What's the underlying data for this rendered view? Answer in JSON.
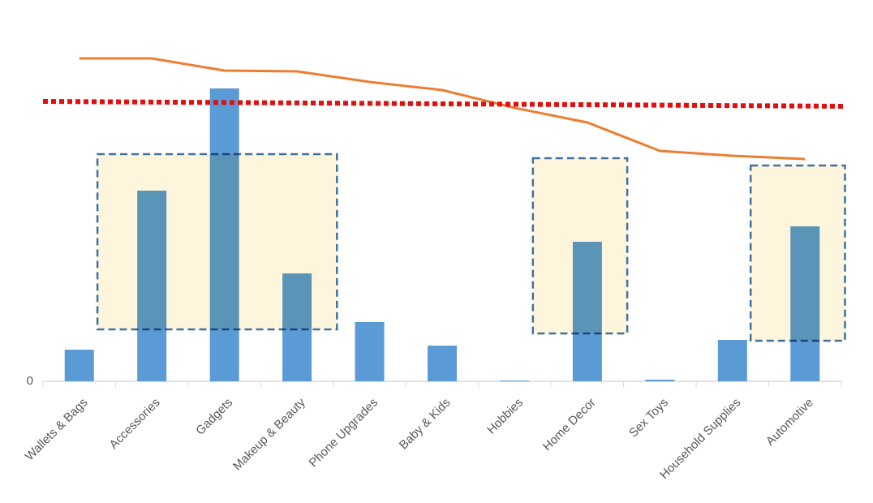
{
  "chart_data": {
    "type": "bar_line",
    "categories": [
      "Wallets & Bags",
      "Accessories",
      "Gadgets",
      "Makeup & Beauty",
      "Phone Upgrades",
      "Baby & Kids",
      "Hobbies",
      "Home Decor",
      "Sex Toys",
      "Household Supplies",
      "Automotive"
    ],
    "series": [
      {
        "type": "bar",
        "color": "#5b9bd5",
        "values": [
          39,
          235,
          361,
          133,
          73,
          44,
          1,
          172,
          2,
          51,
          191
        ]
      },
      {
        "type": "line",
        "color": "#ed7d31",
        "values": [
          398,
          398,
          383,
          382,
          369,
          359,
          337,
          319,
          284,
          278,
          274
        ]
      }
    ],
    "reference_line": {
      "color": "#e01010",
      "start": 345,
      "end": 339
    },
    "highlights": [
      {
        "from": 1,
        "to": 3,
        "top": 280,
        "bottom": 64
      },
      {
        "from": 7,
        "to": 7,
        "top": 275,
        "bottom": 59
      },
      {
        "from": 10,
        "to": 10,
        "top": 266,
        "bottom": 50
      }
    ],
    "ylim": [
      0,
      420
    ],
    "yticks": [
      0
    ]
  }
}
